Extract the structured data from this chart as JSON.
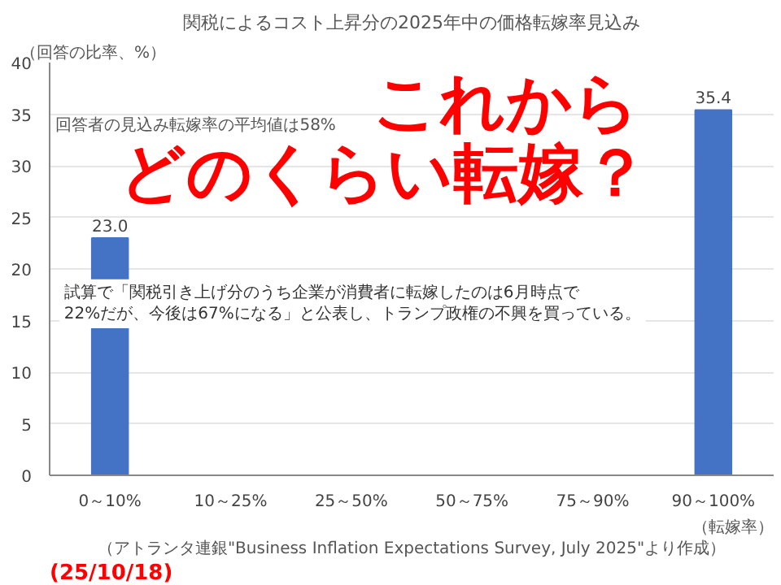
{
  "chart_data": {
    "type": "bar",
    "title": "関税によるコスト上昇分の2025年中の価格転嫁率見込み",
    "ylabel": "（回答の比率、%）",
    "xlabel": "（転嫁率）",
    "categories": [
      "0～10%",
      "10～25%",
      "25～50%",
      "50～75%",
      "75～90%",
      "90～100%"
    ],
    "values": [
      23.0,
      null,
      null,
      null,
      null,
      35.4
    ],
    "value_labels": [
      "23.0",
      null,
      null,
      null,
      null,
      "35.4"
    ],
    "color": "#4472c4",
    "ylim": [
      0,
      40
    ],
    "yticks": [
      0,
      5,
      10,
      15,
      20,
      25,
      30,
      35,
      40
    ],
    "grid": "y",
    "annotations": [
      "回答者の見込み転嫁率の平均値は58%",
      "これから",
      "どのくらい転嫁？",
      "試算で「関税引き上げ分のうち企業が消費者に転嫁したのは6月時点で\n22%だが、今後は67%になる」と公表し、トランプ政権の不興を買っている。",
      "（アトランタ連銀\"Business Inflation Expectations Survey, July 2025\"より作成）",
      "(25/10/18)"
    ]
  }
}
